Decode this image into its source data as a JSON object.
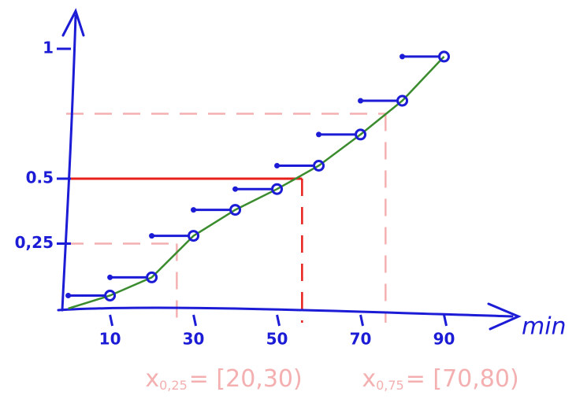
{
  "chart_data": {
    "type": "step",
    "x": [
      0,
      10,
      20,
      30,
      40,
      50,
      60,
      70,
      80,
      90
    ],
    "values": [
      0,
      0.05,
      0.12,
      0.28,
      0.38,
      0.46,
      0.55,
      0.67,
      0.8,
      0.97
    ],
    "step_color": "#1c1cd6",
    "line_color": "#3b8c2e",
    "axis_color": "#1c1cd6",
    "xlim": [
      -2,
      105
    ],
    "ylim": [
      0,
      1.1
    ],
    "xticks": [
      10,
      30,
      50,
      70,
      90
    ],
    "yticks": [
      {
        "value": 0.25,
        "label": "0,25"
      },
      {
        "value": 0.5,
        "label": "0.5"
      },
      1
    ],
    "x_label": "min",
    "quantiles": [
      {
        "p": 0.25,
        "x": 26,
        "color": "#f4b0b0"
      },
      {
        "p": 0.5,
        "x": 56,
        "color": "#e8201c"
      },
      {
        "p": 0.75,
        "x": 76,
        "color": "#f4b0b0"
      }
    ],
    "annotations": [
      {
        "symbol": "x",
        "subscript": "0,25",
        "text": "= [20,30)"
      },
      {
        "symbol": "x",
        "subscript": "0,75",
        "text": "= [70,80)"
      }
    ]
  }
}
